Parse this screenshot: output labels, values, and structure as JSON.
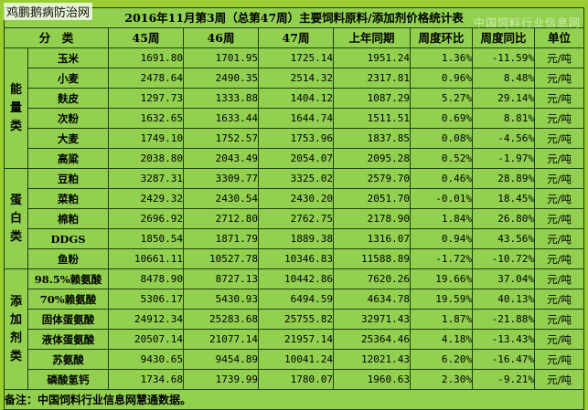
{
  "watermark_top_left": "鸡鹏鹅病防治网",
  "watermark_bg": "中国饲料行业信息网",
  "title": "2016年11月第3周（总第47周）主要饲料原料/添加剂价格统计表",
  "headers": [
    "分　类",
    "45周",
    "46周",
    "47周",
    "上年同期",
    "周度环比",
    "周度同比",
    "单位"
  ],
  "groups": [
    {
      "category": "能量类",
      "rows": [
        {
          "name": "玉米",
          "w45": "1691.80",
          "w46": "1701.95",
          "w47": "1725.14",
          "last_year": "1951.24",
          "wow": "1.36%",
          "yoy": "-11.59%",
          "unit": "元/吨"
        },
        {
          "name": "小麦",
          "w45": "2478.64",
          "w46": "2490.35",
          "w47": "2514.32",
          "last_year": "2317.81",
          "wow": "0.96%",
          "yoy": "8.48%",
          "unit": "元/吨"
        },
        {
          "name": "麸皮",
          "w45": "1297.73",
          "w46": "1333.88",
          "w47": "1404.12",
          "last_year": "1087.29",
          "wow": "5.27%",
          "yoy": "29.14%",
          "unit": "元/吨"
        },
        {
          "name": "次粉",
          "w45": "1632.65",
          "w46": "1633.44",
          "w47": "1644.74",
          "last_year": "1511.51",
          "wow": "0.69%",
          "yoy": "8.81%",
          "unit": "元/吨"
        },
        {
          "name": "大麦",
          "w45": "1749.10",
          "w46": "1752.57",
          "w47": "1753.96",
          "last_year": "1837.85",
          "wow": "0.08%",
          "yoy": "-4.56%",
          "unit": "元/吨"
        },
        {
          "name": "高粱",
          "w45": "2038.80",
          "w46": "2043.49",
          "w47": "2054.07",
          "last_year": "2095.28",
          "wow": "0.52%",
          "yoy": "-1.97%",
          "unit": "元/吨"
        }
      ]
    },
    {
      "category": "蛋白类",
      "rows": [
        {
          "name": "豆粕",
          "w45": "3287.31",
          "w46": "3309.77",
          "w47": "3325.02",
          "last_year": "2579.70",
          "wow": "0.46%",
          "yoy": "28.89%",
          "unit": "元/吨"
        },
        {
          "name": "菜粕",
          "w45": "2429.32",
          "w46": "2430.54",
          "w47": "2430.20",
          "last_year": "2051.70",
          "wow": "-0.01%",
          "yoy": "18.45%",
          "unit": "元/吨"
        },
        {
          "name": "棉粕",
          "w45": "2696.92",
          "w46": "2712.80",
          "w47": "2762.75",
          "last_year": "2178.90",
          "wow": "1.84%",
          "yoy": "26.80%",
          "unit": "元/吨"
        },
        {
          "name": "DDGS",
          "w45": "1850.54",
          "w46": "1871.79",
          "w47": "1889.38",
          "last_year": "1316.07",
          "wow": "0.94%",
          "yoy": "43.56%",
          "unit": "元/吨"
        },
        {
          "name": "鱼粉",
          "w45": "10661.11",
          "w46": "10527.78",
          "w47": "10346.83",
          "last_year": "11588.89",
          "wow": "-1.72%",
          "yoy": "-10.72%",
          "unit": "元/吨"
        }
      ]
    },
    {
      "category": "添加剂类",
      "rows": [
        {
          "name": "98.5%赖氨酸",
          "w45": "8478.90",
          "w46": "8727.13",
          "w47": "10442.86",
          "last_year": "7620.26",
          "wow": "19.66%",
          "yoy": "37.04%",
          "unit": "元/吨"
        },
        {
          "name": "70%赖氨酸",
          "w45": "5306.17",
          "w46": "5430.93",
          "w47": "6494.59",
          "last_year": "4634.78",
          "wow": "19.59%",
          "yoy": "40.13%",
          "unit": "元/吨"
        },
        {
          "name": "固体蛋氨酸",
          "w45": "24912.34",
          "w46": "25283.68",
          "w47": "25755.82",
          "last_year": "32971.43",
          "wow": "1.87%",
          "yoy": "-21.88%",
          "unit": "元/吨"
        },
        {
          "name": "液体蛋氨酸",
          "w45": "20507.14",
          "w46": "21077.14",
          "w47": "21957.14",
          "last_year": "25364.46",
          "wow": "4.18%",
          "yoy": "-13.43%",
          "unit": "元/吨"
        },
        {
          "name": "苏氨酸",
          "w45": "9430.65",
          "w46": "9454.89",
          "w47": "10041.24",
          "last_year": "12021.43",
          "wow": "6.20%",
          "yoy": "-16.47%",
          "unit": "元/吨"
        },
        {
          "name": "磷酸氢钙",
          "w45": "1734.68",
          "w46": "1739.99",
          "w47": "1780.07",
          "last_year": "1960.63",
          "wow": "2.30%",
          "yoy": "-9.21%",
          "unit": "元/吨"
        }
      ]
    }
  ],
  "note": "备注：中国饲料行业信息网慧通数据。"
}
